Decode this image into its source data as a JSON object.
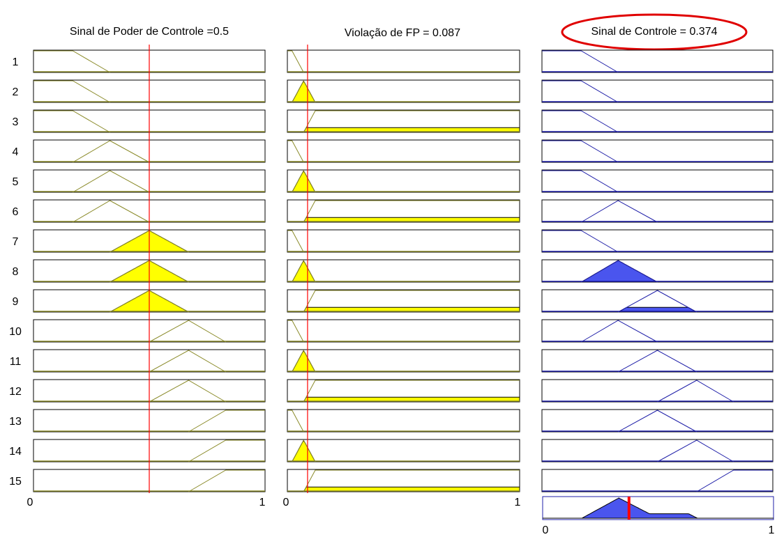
{
  "titles": {
    "input1": "Sinal de Poder de Controle =0.5",
    "input2": "Violação de FP = 0.087",
    "output": "Sinal de Controle = 0.374"
  },
  "rule_numbers": [
    "1",
    "2",
    "3",
    "4",
    "5",
    "6",
    "7",
    "8",
    "9",
    "10",
    "11",
    "12",
    "13",
    "14",
    "15"
  ],
  "axis": {
    "input1_min": "0",
    "input1_max": "1",
    "input2_min": "0",
    "input2_max": "1",
    "output_min": "0",
    "output_max": "1"
  },
  "inputs": {
    "input1": 0.5,
    "input2": 0.087
  },
  "output_value": 0.374,
  "colors": {
    "input_line": "#8b8b2a",
    "input_fill": "#ffff00",
    "output_line": "#1f1fa8",
    "output_fill": "#4a55ee",
    "marker": "#ff0000",
    "highlight_ellipse": "#e00000"
  },
  "rules": [
    {
      "in1": [
        0.0,
        0.0,
        0.17,
        0.33
      ],
      "in2": [
        0.0,
        0.0,
        0.02,
        0.07
      ],
      "out": [
        0.0,
        0.0,
        0.17,
        0.33
      ],
      "w1": 0,
      "w2": 0,
      "wout": 0
    },
    {
      "in1": [
        0.0,
        0.0,
        0.17,
        0.33
      ],
      "in2": [
        0.02,
        0.07,
        0.12
      ],
      "out": [
        0.0,
        0.0,
        0.17,
        0.33
      ],
      "w1": 0,
      "w2": 1,
      "wout": 0
    },
    {
      "in1": [
        0.0,
        0.0,
        0.17,
        0.33
      ],
      "in2": [
        0.07,
        0.12,
        1.0,
        1.0
      ],
      "out": [
        0.0,
        0.0,
        0.17,
        0.33
      ],
      "w1": 0,
      "w2": 0.22,
      "wout": 0
    },
    {
      "in1": [
        0.17,
        0.33,
        0.5
      ],
      "in2": [
        0.0,
        0.0,
        0.02,
        0.07
      ],
      "out": [
        0.0,
        0.0,
        0.17,
        0.33
      ],
      "w1": 0,
      "w2": 0,
      "wout": 0
    },
    {
      "in1": [
        0.17,
        0.33,
        0.5
      ],
      "in2": [
        0.02,
        0.07,
        0.12
      ],
      "out": [
        0.0,
        0.0,
        0.17,
        0.33
      ],
      "w1": 0,
      "w2": 1,
      "wout": 0
    },
    {
      "in1": [
        0.17,
        0.33,
        0.5
      ],
      "in2": [
        0.07,
        0.12,
        1.0,
        1.0
      ],
      "out": [
        0.17,
        0.33,
        0.5
      ],
      "w1": 0,
      "w2": 0.22,
      "wout": 0
    },
    {
      "in1": [
        0.33,
        0.5,
        0.67
      ],
      "in2": [
        0.0,
        0.0,
        0.02,
        0.07
      ],
      "out": [
        0.0,
        0.0,
        0.17,
        0.33
      ],
      "w1": 1,
      "w2": 0,
      "wout": 0
    },
    {
      "in1": [
        0.33,
        0.5,
        0.67
      ],
      "in2": [
        0.02,
        0.07,
        0.12
      ],
      "out": [
        0.17,
        0.33,
        0.5
      ],
      "w1": 1,
      "w2": 1,
      "wout": 1
    },
    {
      "in1": [
        0.33,
        0.5,
        0.67
      ],
      "in2": [
        0.07,
        0.12,
        1.0,
        1.0
      ],
      "out": [
        0.33,
        0.5,
        0.67
      ],
      "w1": 1,
      "w2": 0.22,
      "wout": 0.22
    },
    {
      "in1": [
        0.5,
        0.67,
        0.83
      ],
      "in2": [
        0.0,
        0.0,
        0.02,
        0.07
      ],
      "out": [
        0.17,
        0.33,
        0.5
      ],
      "w1": 0,
      "w2": 0,
      "wout": 0
    },
    {
      "in1": [
        0.5,
        0.67,
        0.83
      ],
      "in2": [
        0.02,
        0.07,
        0.12
      ],
      "out": [
        0.33,
        0.5,
        0.67
      ],
      "w1": 0,
      "w2": 1,
      "wout": 0
    },
    {
      "in1": [
        0.5,
        0.67,
        0.83
      ],
      "in2": [
        0.07,
        0.12,
        1.0,
        1.0
      ],
      "out": [
        0.5,
        0.67,
        0.83
      ],
      "w1": 0,
      "w2": 0.22,
      "wout": 0
    },
    {
      "in1": [
        0.67,
        0.83,
        1.0,
        1.0
      ],
      "in2": [
        0.0,
        0.0,
        0.02,
        0.07
      ],
      "out": [
        0.33,
        0.5,
        0.67
      ],
      "w1": 0,
      "w2": 0,
      "wout": 0
    },
    {
      "in1": [
        0.67,
        0.83,
        1.0,
        1.0
      ],
      "in2": [
        0.02,
        0.07,
        0.12
      ],
      "out": [
        0.5,
        0.67,
        0.83
      ],
      "w1": 0,
      "w2": 1,
      "wout": 0
    },
    {
      "in1": [
        0.67,
        0.83,
        1.0,
        1.0
      ],
      "in2": [
        0.07,
        0.12,
        1.0,
        1.0
      ],
      "out": [
        0.67,
        0.83,
        1.0,
        1.0
      ],
      "w1": 0,
      "w2": 0.22,
      "wout": 0
    }
  ]
}
